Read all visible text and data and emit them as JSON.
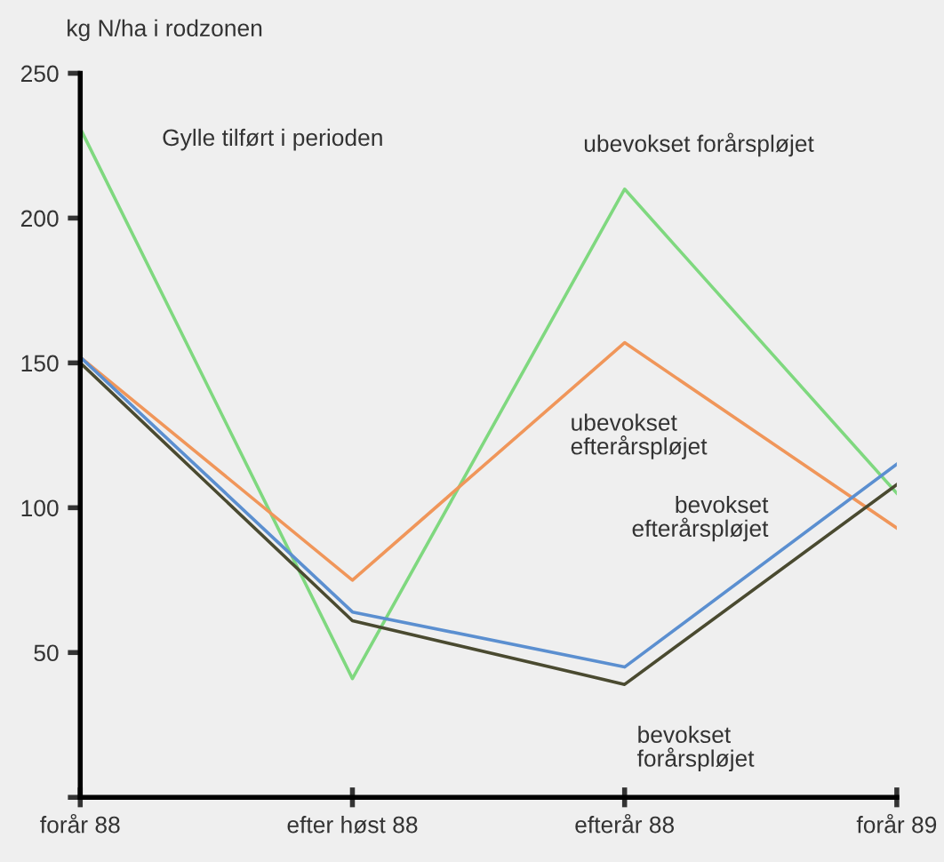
{
  "chart_data": {
    "type": "line",
    "ylabel": "kg N/ha i rodzonen",
    "categories": [
      "forår 88",
      "efter høst 88",
      "efterår 88",
      "forår 89"
    ],
    "series": [
      {
        "name": "ubevokset forårspløjet",
        "color": "#7fd87f",
        "values": [
          231,
          41,
          210,
          105
        ]
      },
      {
        "name": "ubevokset\nefterårspløjet",
        "color": "#f0965a",
        "values": [
          152,
          75,
          157,
          93
        ]
      },
      {
        "name": "bevokset\nefterårspløjet",
        "color": "#5b8fd0",
        "values": [
          152,
          64,
          45,
          115
        ]
      },
      {
        "name": "bevokset\nforårspløjet",
        "color": "#4a4a30",
        "values": [
          150,
          61,
          39,
          108
        ]
      }
    ],
    "annotations": [
      "Gylle tilført i perioden"
    ],
    "ylim": [
      0,
      250
    ],
    "yticks": [
      {
        "value": 0,
        "label": null
      },
      50,
      100,
      150,
      200,
      250
    ],
    "grid": false,
    "legend": false,
    "marker": "none",
    "line_style": "solid"
  }
}
